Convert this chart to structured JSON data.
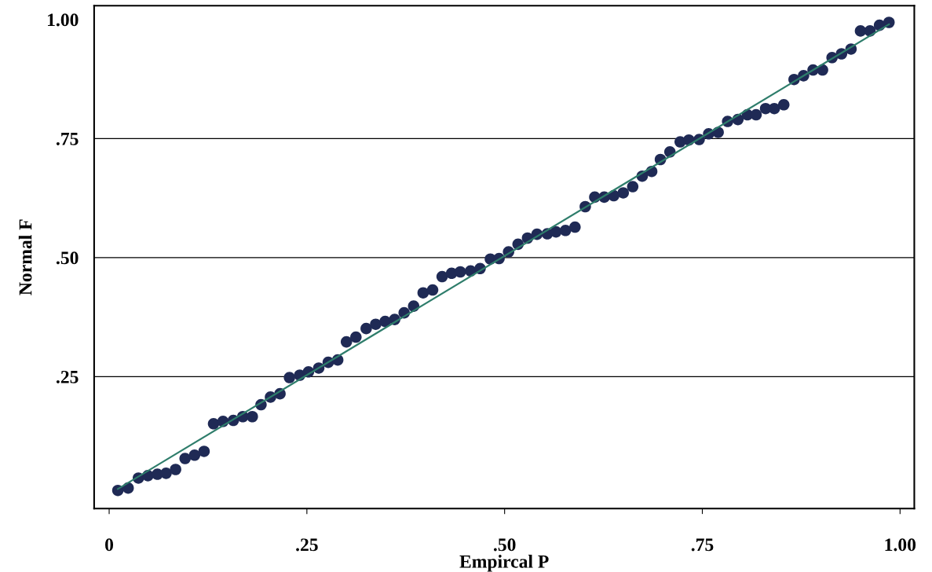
{
  "chart_data": {
    "type": "scatter",
    "xlabel": "Empircal P",
    "ylabel": "Normal F",
    "xlim": [
      -0.019,
      1.018
    ],
    "ylim": [
      -0.027,
      1.029
    ],
    "xticks": [
      {
        "value": 0,
        "label": "0"
      },
      {
        "value": 0.25,
        "label": ".25"
      },
      {
        "value": 0.5,
        "label": ".50"
      },
      {
        "value": 0.75,
        "label": ".75"
      },
      {
        "value": 1.0,
        "label": "1.00"
      }
    ],
    "yticks": [
      {
        "value": 0.25,
        "label": ".25"
      },
      {
        "value": 0.5,
        "label": ".50"
      },
      {
        "value": 0.75,
        "label": ".75"
      },
      {
        "value": 1.0,
        "label": "1.00"
      }
    ],
    "ref_lines": [
      {
        "axis": "y",
        "value": 0.25,
        "color": "#000000"
      },
      {
        "axis": "y",
        "value": 0.5,
        "color": "#000000"
      },
      {
        "axis": "y",
        "value": 0.75,
        "color": "#000000"
      }
    ],
    "series": [
      {
        "type": "line",
        "color": "#2e7d6b",
        "x": [
          0.011,
          0.986
        ],
        "values": [
          0.014,
          0.99
        ]
      },
      {
        "marker": "circle",
        "color": "#1f2a55",
        "x": [
          0.011,
          0.024,
          0.037,
          0.049,
          0.061,
          0.072,
          0.084,
          0.096,
          0.108,
          0.12,
          0.132,
          0.144,
          0.157,
          0.169,
          0.181,
          0.192,
          0.204,
          0.216,
          0.228,
          0.241,
          0.252,
          0.265,
          0.277,
          0.289,
          0.3,
          0.312,
          0.325,
          0.337,
          0.349,
          0.361,
          0.373,
          0.385,
          0.397,
          0.409,
          0.421,
          0.433,
          0.444,
          0.457,
          0.469,
          0.482,
          0.493,
          0.505,
          0.517,
          0.529,
          0.541,
          0.554,
          0.565,
          0.577,
          0.589,
          0.602,
          0.614,
          0.626,
          0.638,
          0.65,
          0.662,
          0.674,
          0.686,
          0.697,
          0.709,
          0.722,
          0.733,
          0.746,
          0.758,
          0.77,
          0.782,
          0.795,
          0.807,
          0.818,
          0.83,
          0.841,
          0.853,
          0.866,
          0.878,
          0.89,
          0.902,
          0.914,
          0.926,
          0.938,
          0.95,
          0.962,
          0.974,
          0.986
        ],
        "values": [
          0.011,
          0.016,
          0.037,
          0.042,
          0.045,
          0.047,
          0.055,
          0.078,
          0.085,
          0.093,
          0.151,
          0.156,
          0.158,
          0.166,
          0.166,
          0.191,
          0.207,
          0.214,
          0.248,
          0.253,
          0.26,
          0.268,
          0.28,
          0.285,
          0.323,
          0.333,
          0.351,
          0.36,
          0.366,
          0.37,
          0.384,
          0.398,
          0.426,
          0.432,
          0.46,
          0.467,
          0.47,
          0.472,
          0.477,
          0.497,
          0.498,
          0.512,
          0.528,
          0.541,
          0.549,
          0.55,
          0.554,
          0.557,
          0.564,
          0.607,
          0.627,
          0.627,
          0.63,
          0.636,
          0.649,
          0.671,
          0.681,
          0.706,
          0.722,
          0.743,
          0.747,
          0.748,
          0.76,
          0.763,
          0.786,
          0.79,
          0.8,
          0.8,
          0.813,
          0.813,
          0.821,
          0.874,
          0.882,
          0.894,
          0.894,
          0.92,
          0.928,
          0.938,
          0.976,
          0.976,
          0.988,
          0.994
        ]
      }
    ]
  }
}
